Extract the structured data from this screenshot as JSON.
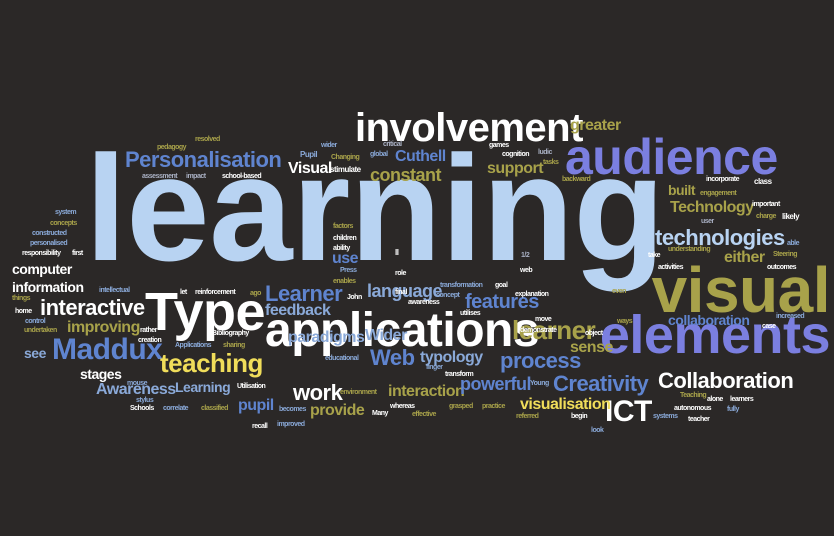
{
  "palette": {
    "background": "#2b2827",
    "white": "#ffffff",
    "light_blue": "#b8d3f2",
    "purple_blue": "#7b7fe0",
    "mid_blue": "#5f84cf",
    "steel_blue": "#8aa9d8",
    "olive": "#a8a24a",
    "yellow": "#f0dd5a",
    "gray": "#a9b0c3"
  },
  "words": [
    {
      "text": "learning",
      "color": "light_blue"
    },
    {
      "text": "involvement",
      "color": "white"
    },
    {
      "text": "audience",
      "color": "purple_blue"
    },
    {
      "text": "visual",
      "color": "olive"
    },
    {
      "text": "elements",
      "color": "purple_blue"
    },
    {
      "text": "applications",
      "color": "white"
    },
    {
      "text": "Type",
      "color": "white"
    },
    {
      "text": "technologies",
      "color": "light_blue"
    },
    {
      "text": "Personalisation",
      "color": "mid_blue"
    },
    {
      "text": "Maddux",
      "color": "mid_blue"
    },
    {
      "text": "teaching",
      "color": "yellow"
    },
    {
      "text": "learner",
      "color": "olive"
    },
    {
      "text": "Collaboration",
      "color": "white"
    },
    {
      "text": "Creativity",
      "color": "mid_blue"
    },
    {
      "text": "ICT",
      "color": "white"
    },
    {
      "text": "process",
      "color": "mid_blue"
    },
    {
      "text": "features",
      "color": "mid_blue"
    },
    {
      "text": "interactive",
      "color": "white"
    },
    {
      "text": "Learner",
      "color": "mid_blue"
    },
    {
      "text": "Web",
      "color": "mid_blue"
    },
    {
      "text": "work",
      "color": "white"
    },
    {
      "text": "greater",
      "color": "olive"
    },
    {
      "text": "Technology",
      "color": "olive"
    },
    {
      "text": "constant",
      "color": "olive"
    },
    {
      "text": "support",
      "color": "olive"
    },
    {
      "text": "Visual",
      "color": "white"
    },
    {
      "text": "Cuthell",
      "color": "mid_blue"
    },
    {
      "text": "built",
      "color": "olive"
    },
    {
      "text": "either",
      "color": "olive"
    },
    {
      "text": "collaboration",
      "color": "mid_blue"
    },
    {
      "text": "feedback",
      "color": "steel_blue"
    },
    {
      "text": "language",
      "color": "steel_blue"
    },
    {
      "text": "paradigms",
      "color": "steel_blue"
    },
    {
      "text": "typology",
      "color": "steel_blue"
    },
    {
      "text": "interaction",
      "color": "olive"
    },
    {
      "text": "powerful",
      "color": "mid_blue"
    },
    {
      "text": "visualisation",
      "color": "yellow"
    },
    {
      "text": "provide",
      "color": "olive"
    },
    {
      "text": "pupil",
      "color": "mid_blue"
    },
    {
      "text": "Awareness",
      "color": "steel_blue"
    },
    {
      "text": "Learning",
      "color": "steel_blue"
    },
    {
      "text": "improving",
      "color": "olive"
    },
    {
      "text": "stages",
      "color": "white"
    },
    {
      "text": "see",
      "color": "steel_blue"
    },
    {
      "text": "computer",
      "color": "white"
    },
    {
      "text": "information",
      "color": "white"
    },
    {
      "text": "Wider",
      "color": "steel_blue"
    },
    {
      "text": "use",
      "color": "mid_blue"
    },
    {
      "text": "sense",
      "color": "olive"
    },
    {
      "text": "pedagogy",
      "color": "olive"
    },
    {
      "text": "resolved",
      "color": "olive"
    },
    {
      "text": "assessment",
      "color": "gray"
    },
    {
      "text": "impact",
      "color": "gray"
    },
    {
      "text": "school-based",
      "color": "white"
    },
    {
      "text": "Pupil",
      "color": "steel_blue"
    },
    {
      "text": "wider",
      "color": "steel_blue"
    },
    {
      "text": "Changing",
      "color": "olive"
    },
    {
      "text": "critical",
      "color": "gray"
    },
    {
      "text": "global",
      "color": "steel_blue"
    },
    {
      "text": "stimulate",
      "color": "white"
    },
    {
      "text": "games",
      "color": "white"
    },
    {
      "text": "cognition",
      "color": "white"
    },
    {
      "text": "ludic",
      "color": "gray"
    },
    {
      "text": "tasks",
      "color": "olive"
    },
    {
      "text": "backward",
      "color": "olive"
    },
    {
      "text": "incorporate",
      "color": "white"
    },
    {
      "text": "class",
      "color": "white"
    },
    {
      "text": "engagement",
      "color": "olive"
    },
    {
      "text": "user",
      "color": "gray"
    },
    {
      "text": "important",
      "color": "white"
    },
    {
      "text": "charge",
      "color": "olive"
    },
    {
      "text": "likely",
      "color": "white"
    },
    {
      "text": "system",
      "color": "steel_blue"
    },
    {
      "text": "concepts",
      "color": "olive"
    },
    {
      "text": "constructed",
      "color": "steel_blue"
    },
    {
      "text": "personalised",
      "color": "steel_blue"
    },
    {
      "text": "responsibility",
      "color": "white"
    },
    {
      "text": "first",
      "color": "white"
    },
    {
      "text": "factors",
      "color": "olive"
    },
    {
      "text": "children",
      "color": "white"
    },
    {
      "text": "ability",
      "color": "white"
    },
    {
      "text": "Press",
      "color": "steel_blue"
    },
    {
      "text": "enables",
      "color": "olive"
    },
    {
      "text": "ll",
      "color": "white"
    },
    {
      "text": "role",
      "color": "white"
    },
    {
      "text": "1/2",
      "color": "gray"
    },
    {
      "text": "web",
      "color": "white"
    },
    {
      "text": "transformation",
      "color": "steel_blue"
    },
    {
      "text": "goal",
      "color": "white"
    },
    {
      "text": "explanation",
      "color": "white"
    },
    {
      "text": "take",
      "color": "white"
    },
    {
      "text": "understanding",
      "color": "olive"
    },
    {
      "text": "activities",
      "color": "white"
    },
    {
      "text": "able",
      "color": "steel_blue"
    },
    {
      "text": "Steering",
      "color": "olive"
    },
    {
      "text": "outcomes",
      "color": "white"
    },
    {
      "text": "things",
      "color": "olive"
    },
    {
      "text": "home",
      "color": "white"
    },
    {
      "text": "control",
      "color": "steel_blue"
    },
    {
      "text": "undertaken",
      "color": "olive"
    },
    {
      "text": "intellectual",
      "color": "steel_blue"
    },
    {
      "text": "let",
      "color": "white"
    },
    {
      "text": "reinforcement",
      "color": "white"
    },
    {
      "text": "ago",
      "color": "olive"
    },
    {
      "text": "Bibliography",
      "color": "white"
    },
    {
      "text": "rather",
      "color": "white"
    },
    {
      "text": "creation",
      "color": "white"
    },
    {
      "text": "John",
      "color": "white"
    },
    {
      "text": "final",
      "color": "white"
    },
    {
      "text": "awareness",
      "color": "white"
    },
    {
      "text": "concept",
      "color": "steel_blue"
    },
    {
      "text": "utilises",
      "color": "white"
    },
    {
      "text": "even",
      "color": "olive"
    },
    {
      "text": "move",
      "color": "white"
    },
    {
      "text": "demonstrate",
      "color": "white"
    },
    {
      "text": "object",
      "color": "white"
    },
    {
      "text": "ways",
      "color": "olive"
    },
    {
      "text": "increased",
      "color": "steel_blue"
    },
    {
      "text": "case",
      "color": "white"
    },
    {
      "text": "Applications",
      "color": "steel_blue"
    },
    {
      "text": "sharing",
      "color": "olive"
    },
    {
      "text": "educational",
      "color": "steel_blue"
    },
    {
      "text": "finger",
      "color": "steel_blue"
    },
    {
      "text": "transform",
      "color": "white"
    },
    {
      "text": "mouse",
      "color": "steel_blue"
    },
    {
      "text": "Utilisation",
      "color": "white"
    },
    {
      "text": "stylus",
      "color": "steel_blue"
    },
    {
      "text": "environment",
      "color": "olive"
    },
    {
      "text": "Young",
      "color": "steel_blue"
    },
    {
      "text": "Teaching",
      "color": "olive"
    },
    {
      "text": "alone",
      "color": "white"
    },
    {
      "text": "learners",
      "color": "white"
    },
    {
      "text": "autonomous",
      "color": "white"
    },
    {
      "text": "teacher",
      "color": "white"
    },
    {
      "text": "fully",
      "color": "steel_blue"
    },
    {
      "text": "Schools",
      "color": "white"
    },
    {
      "text": "correlate",
      "color": "steel_blue"
    },
    {
      "text": "classified",
      "color": "olive"
    },
    {
      "text": "becomes",
      "color": "steel_blue"
    },
    {
      "text": "Many",
      "color": "white"
    },
    {
      "text": "whereas",
      "color": "white"
    },
    {
      "text": "effective",
      "color": "olive"
    },
    {
      "text": "grasped",
      "color": "olive"
    },
    {
      "text": "practice",
      "color": "olive"
    },
    {
      "text": "referred",
      "color": "olive"
    },
    {
      "text": "begin",
      "color": "white"
    },
    {
      "text": "systems",
      "color": "steel_blue"
    },
    {
      "text": "recall",
      "color": "white"
    },
    {
      "text": "improved",
      "color": "steel_blue"
    },
    {
      "text": "look",
      "color": "steel_blue"
    }
  ]
}
